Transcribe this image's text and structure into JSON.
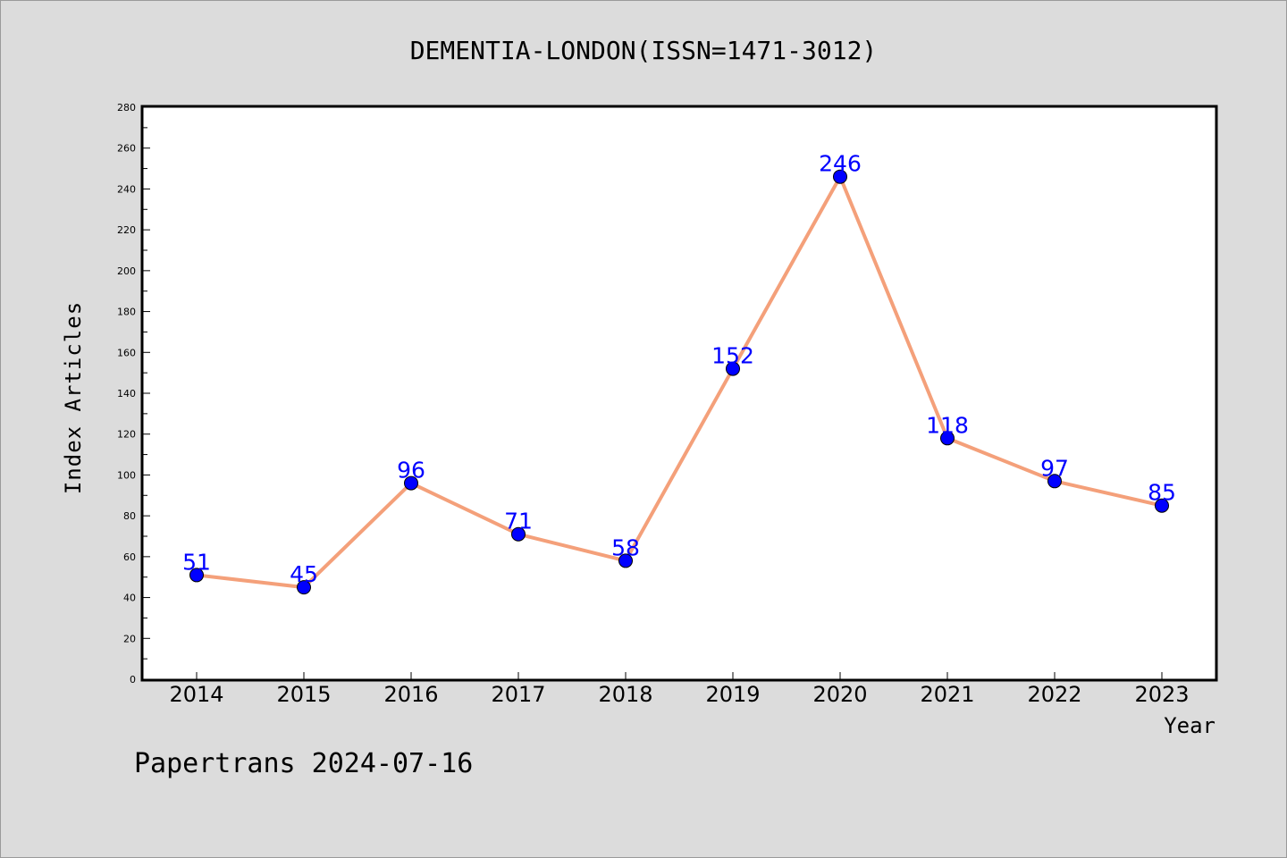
{
  "chart_data": {
    "type": "line",
    "title": "DEMENTIA-LONDON(ISSN=1471-3012)",
    "xlabel": "Year",
    "ylabel": "Index Articles",
    "categories": [
      "2014",
      "2015",
      "2016",
      "2017",
      "2018",
      "2019",
      "2020",
      "2021",
      "2022",
      "2023"
    ],
    "values": [
      51,
      45,
      96,
      71,
      58,
      152,
      246,
      118,
      97,
      85
    ],
    "ylim": [
      0,
      280
    ],
    "yticks": [
      0,
      20,
      40,
      60,
      80,
      100,
      120,
      140,
      160,
      180,
      200,
      220,
      240,
      260,
      280
    ],
    "grid": false,
    "line_color": "#f4a07a",
    "marker_color": "#0000ff",
    "label_color": "#0000ff"
  },
  "footer": "Papertrans 2024-07-16"
}
